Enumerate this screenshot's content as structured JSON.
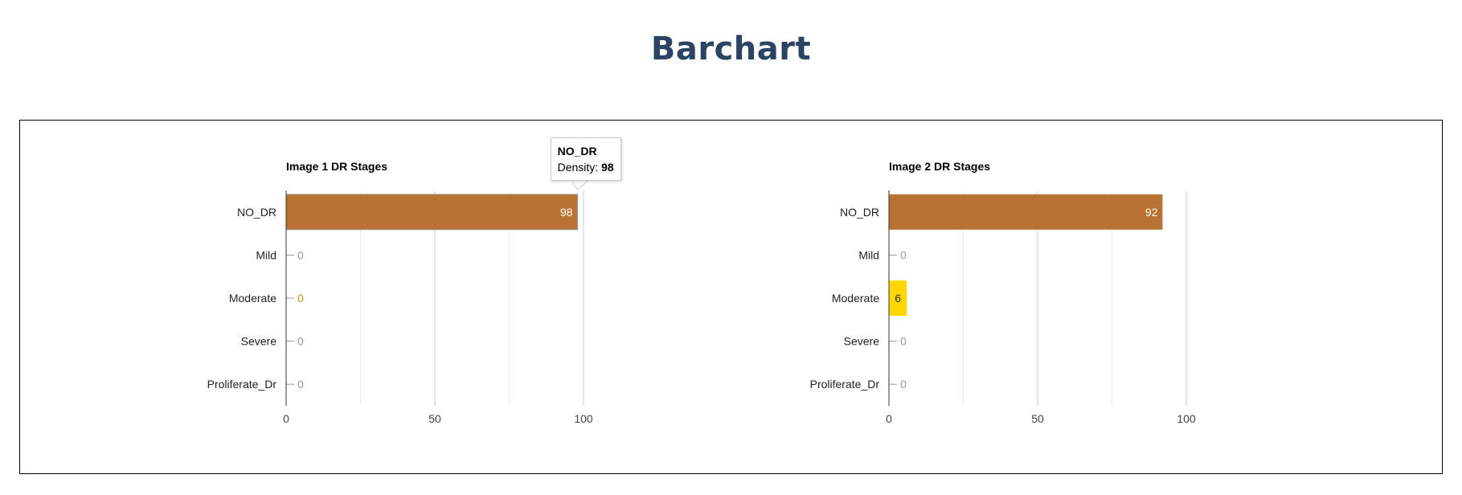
{
  "page": {
    "title": "Barchart"
  },
  "chart_data": [
    {
      "type": "bar",
      "orientation": "horizontal",
      "title": "Image 1 DR Stages",
      "categories": [
        "NO_DR",
        "Mild",
        "Moderate",
        "Severe",
        "Proliferate_Dr"
      ],
      "values": [
        98,
        0,
        0,
        0,
        0
      ],
      "colors": [
        "#b87333",
        "#c0c0c0",
        "#d4af37",
        "#c0c0c0",
        "#c0c0c0"
      ],
      "xlim": [
        0,
        100
      ],
      "xticks": [
        "0",
        "50",
        "100"
      ],
      "grid": true,
      "tooltip": {
        "category": "NO_DR",
        "series_label": "Density",
        "value": "98"
      }
    },
    {
      "type": "bar",
      "orientation": "horizontal",
      "title": "Image 2 DR Stages",
      "categories": [
        "NO_DR",
        "Mild",
        "Moderate",
        "Severe",
        "Proliferate_Dr"
      ],
      "values": [
        92,
        0,
        6,
        0,
        0
      ],
      "colors": [
        "#b87333",
        "#c0c0c0",
        "#ffd700",
        "#c0c0c0",
        "#c0c0c0"
      ],
      "xlim": [
        0,
        100
      ],
      "xticks": [
        "0",
        "50",
        "100"
      ],
      "grid": true
    }
  ]
}
